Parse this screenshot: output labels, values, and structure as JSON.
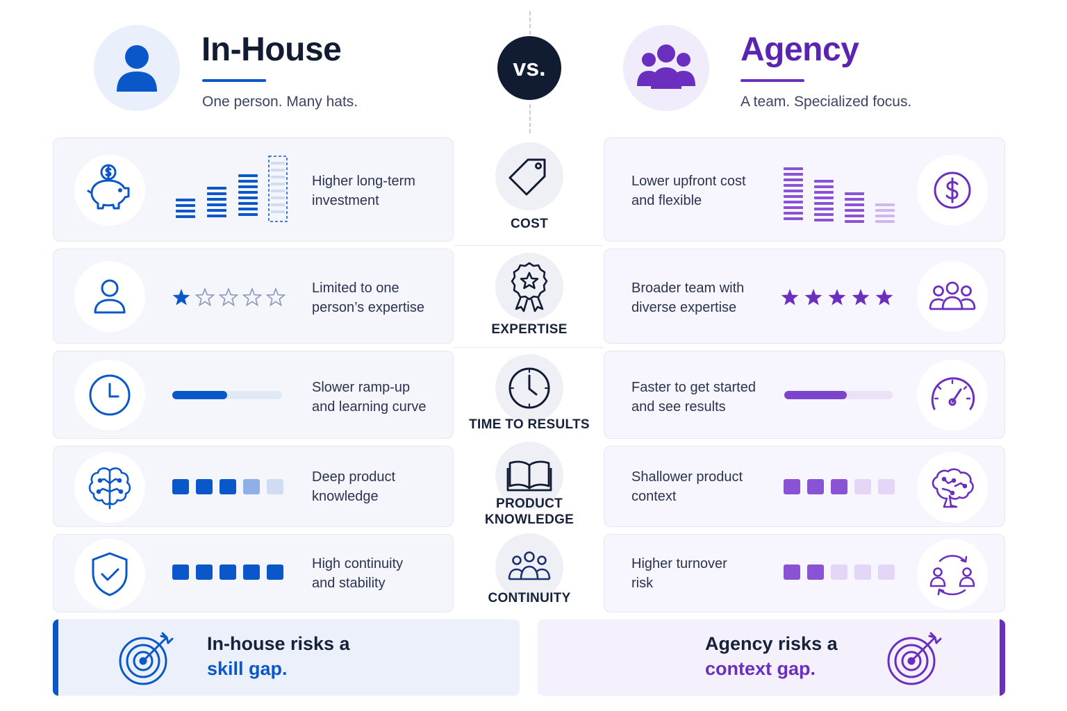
{
  "header": {
    "left_title": "In-House",
    "left_subtitle": "One person. Many hats.",
    "right_title": "Agency",
    "right_subtitle": "A team. Specialized focus.",
    "vs_label": "vs."
  },
  "colors": {
    "blue": "#0a57c9",
    "purple": "#6b2fc0",
    "dark": "#111c33"
  },
  "categories": [
    {
      "label": "COST",
      "icon": "price-tag-icon",
      "left_text": [
        "Higher long-term",
        "investment"
      ],
      "left_icon": "piggy-bank-icon",
      "right_text": [
        "Lower upfront cost",
        "and flexible"
      ],
      "right_icon": "dollar-coin-icon"
    },
    {
      "label": "EXPERTISE",
      "icon": "award-badge-icon",
      "left_text": [
        "Limited to one",
        "person’s expertise"
      ],
      "left_icon": "person-icon",
      "left_rating": 1,
      "right_text": [
        "Broader team with",
        "diverse expertise"
      ],
      "right_icon": "team-icon",
      "right_rating": 5,
      "rating_max": 5
    },
    {
      "label": "TIME TO RESULTS",
      "icon": "clock-icon",
      "left_text": [
        "Slower ramp-up",
        "and learning curve"
      ],
      "left_icon": "clock-icon",
      "left_progress": 0.5,
      "right_text": [
        "Faster to get started",
        "and see results"
      ],
      "right_icon": "speedometer-icon",
      "right_progress": 0.58
    },
    {
      "label": [
        "PRODUCT",
        "KNOWLEDGE"
      ],
      "icon": "open-book-icon",
      "left_text": [
        "Deep product",
        "knowledge"
      ],
      "left_icon": "brain-icon",
      "left_level": 3,
      "right_text": [
        "Shallower product",
        "context"
      ],
      "right_icon": "brain-icon",
      "right_level": 3,
      "level_max": 5
    },
    {
      "label": "CONTINUITY",
      "icon": "group-icon",
      "left_text": [
        "High continuity",
        "and stability"
      ],
      "left_icon": "shield-check-icon",
      "left_level": 5,
      "right_text": [
        "Higher turnover",
        "risk"
      ],
      "right_icon": "people-rotation-icon",
      "right_level": 2,
      "level_max": 5
    }
  ],
  "footer": {
    "left_line1": "In-house risks a",
    "left_line2": "skill gap.",
    "right_line1": "Agency risks a",
    "right_line2": "context gap."
  }
}
